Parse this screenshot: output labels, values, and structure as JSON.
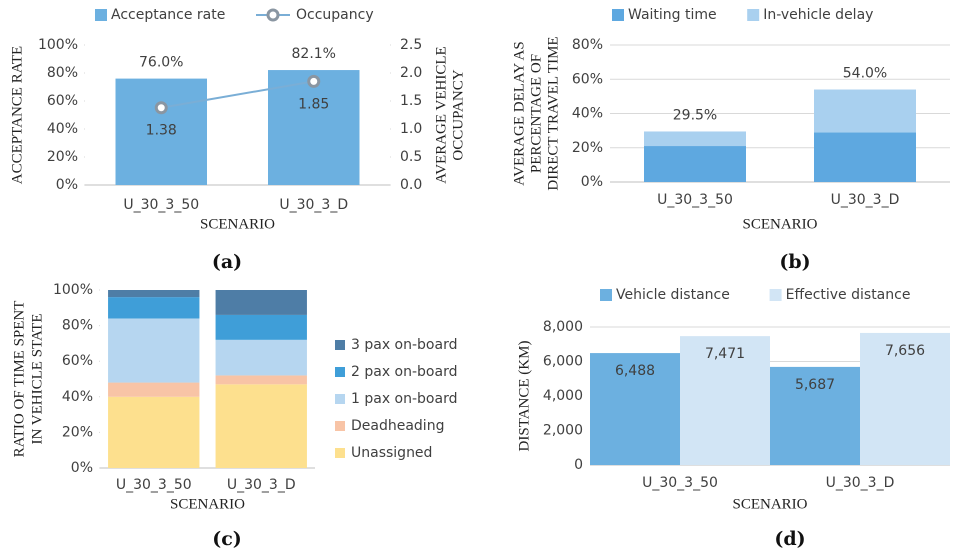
{
  "chart_data": [
    {
      "type": "bar",
      "caption": "(a)",
      "categories": [
        "U_30_3_50",
        "U_30_3_D"
      ],
      "xlabel": "SCENARIO",
      "ylabel": [
        "ACCEPTANCE RATE"
      ],
      "y2label": [
        "AVERAGE VEHICLE",
        "OCCUPANCY"
      ],
      "series": [
        {
          "name": "Acceptance rate",
          "color": "#6cb0e0",
          "values": [
            76.0,
            82.1
          ],
          "value_labels": [
            "76.0%",
            "82.1%"
          ]
        },
        {
          "name": "Occupancy",
          "type": "line",
          "axis": "y2",
          "color": "#7aaed6",
          "marker_color": "#8a96a2",
          "values": [
            1.38,
            1.85
          ]
        }
      ],
      "ylim": [
        0,
        100
      ],
      "yticks": [
        {
          "value": 0,
          "label": "0%"
        },
        {
          "value": 20,
          "label": "20%"
        },
        {
          "value": 40,
          "label": "40%"
        },
        {
          "value": 60,
          "label": "60%"
        },
        {
          "value": 80,
          "label": "80%"
        },
        {
          "value": 100,
          "label": "100%"
        }
      ],
      "y2lim": [
        0,
        2.5
      ],
      "y2ticks": [
        {
          "value": 0,
          "label": "0.0"
        },
        0.5,
        {
          "value": 1,
          "label": "1.0"
        },
        1.5,
        {
          "value": 2,
          "label": "2.0"
        },
        2.5
      ],
      "grid": false,
      "legend": "top"
    },
    {
      "type": "stacked_bar",
      "caption": "(b)",
      "categories": [
        "U_30_3_50",
        "U_30_3_D"
      ],
      "xlabel": "SCENARIO",
      "ylabel": [
        "AVERAGE DELAY AS",
        "PERCENTAGE OF",
        "DIRECT TRAVEL TIME"
      ],
      "series": [
        {
          "name": "Waiting time",
          "color": "#5ea8e0",
          "values": [
            21,
            29
          ]
        },
        {
          "name": "In-vehicle delay",
          "color": "#a9d0ef",
          "values": [
            8.5,
            25
          ]
        }
      ],
      "totals": [
        29.5,
        54.0
      ],
      "total_labels": [
        "29.5%",
        "54.0%"
      ],
      "ylim": [
        0,
        80
      ],
      "yticks": [
        {
          "value": 0,
          "label": "0%"
        },
        {
          "value": 20,
          "label": "20%"
        },
        {
          "value": 40,
          "label": "40%"
        },
        {
          "value": 60,
          "label": "60%"
        },
        {
          "value": 80,
          "label": "80%"
        }
      ],
      "grid": true,
      "legend": "top"
    },
    {
      "type": "stacked_bar",
      "caption": "(c)",
      "categories": [
        "U_30_3_50",
        "U_30_3_D"
      ],
      "xlabel": "SCENARIO",
      "ylabel": [
        "RATIO OF TIME SPENT",
        "IN VEHICLE STATE"
      ],
      "series": [
        {
          "name": "Unassigned",
          "color": "#fde08e",
          "values": [
            40,
            47
          ]
        },
        {
          "name": "Deadheading",
          "color": "#f8c4a6",
          "values": [
            8,
            5
          ]
        },
        {
          "name": "1 pax on-board",
          "color": "#b6d6f0",
          "values": [
            36,
            20
          ]
        },
        {
          "name": "2 pax on-board",
          "color": "#3f9ed8",
          "values": [
            12,
            14
          ]
        },
        {
          "name": "3 pax on-board",
          "color": "#4e7da6",
          "values": [
            4,
            14
          ]
        }
      ],
      "ylim": [
        0,
        100
      ],
      "yticks": [
        {
          "value": 0,
          "label": "0%"
        },
        {
          "value": 20,
          "label": "20%"
        },
        {
          "value": 40,
          "label": "40%"
        },
        {
          "value": 60,
          "label": "60%"
        },
        {
          "value": 80,
          "label": "80%"
        },
        {
          "value": 100,
          "label": "100%"
        }
      ],
      "grid": false,
      "legend": "right"
    },
    {
      "type": "bar",
      "caption": "(d)",
      "categories": [
        "U_30_3_50",
        "U_30_3_D"
      ],
      "xlabel": "SCENARIO",
      "ylabel": [
        "DISTANCE (KM)"
      ],
      "series": [
        {
          "name": "Vehicle distance",
          "color": "#6cb0e0",
          "values": [
            6488,
            5687
          ],
          "value_labels": [
            "6,488",
            "5,687"
          ]
        },
        {
          "name": "Effective distance",
          "color": "#d2e5f5",
          "values": [
            7471,
            7656
          ],
          "value_labels": [
            "7,471",
            "7,656"
          ]
        }
      ],
      "ylim": [
        0,
        8000
      ],
      "yticks": [
        0,
        {
          "value": 2000,
          "label": "2,000"
        },
        {
          "value": 4000,
          "label": "4,000"
        },
        {
          "value": 6000,
          "label": "6,000"
        },
        {
          "value": 8000,
          "label": "8,000"
        }
      ],
      "grid": true,
      "legend": "top"
    }
  ]
}
